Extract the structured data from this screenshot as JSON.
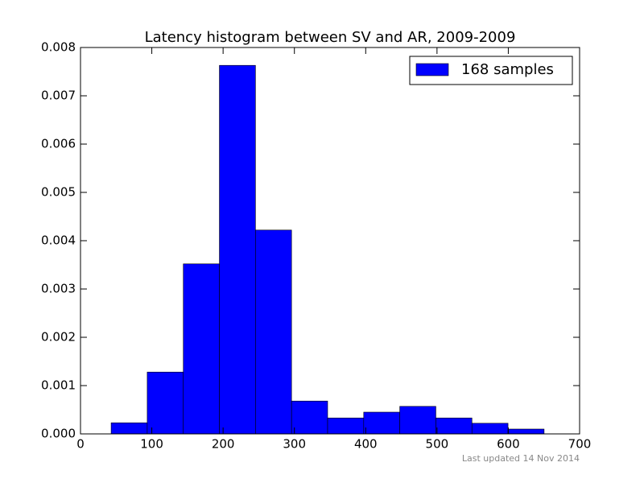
{
  "chart_data": {
    "type": "histogram",
    "title": "Latency histogram between SV and AR, 2009-2009",
    "bins": [
      43,
      93.6,
      144.2,
      194.8,
      245.4,
      296,
      346.6,
      397.2,
      447.8,
      498.4,
      549,
      599.6,
      650.2
    ],
    "series": [
      {
        "name": "168 samples",
        "color": "#0000ff",
        "values": [
          0.00023,
          0.00128,
          0.00352,
          0.00763,
          0.00422,
          0.00068,
          0.00033,
          0.00045,
          0.00057,
          0.00033,
          0.00022,
          0.0001
        ]
      }
    ],
    "xlim": [
      0,
      700
    ],
    "xticks": [
      0,
      100,
      200,
      300,
      400,
      500,
      600,
      700
    ],
    "ylim": [
      0,
      0.008
    ],
    "yticks": [
      {
        "value": 0,
        "label": "0.000"
      },
      {
        "value": 0.001,
        "label": "0.001"
      },
      {
        "value": 0.002,
        "label": "0.002"
      },
      {
        "value": 0.003,
        "label": "0.003"
      },
      {
        "value": 0.004,
        "label": "0.004"
      },
      {
        "value": 0.005,
        "label": "0.005"
      },
      {
        "value": 0.006,
        "label": "0.006"
      },
      {
        "value": 0.007,
        "label": "0.007"
      },
      {
        "value": 0.008,
        "label": "0.008"
      }
    ],
    "legend": "upper right",
    "footnote": "Last updated 14 Nov 2014"
  }
}
